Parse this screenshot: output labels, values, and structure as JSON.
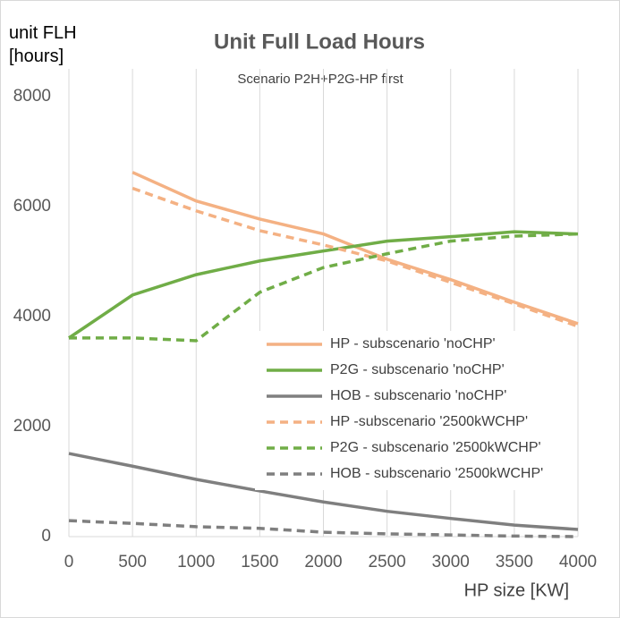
{
  "chart_data": {
    "type": "line",
    "title": "Unit Full Load Hours",
    "subtitle": "Scenario P2H+P2G-HP first",
    "y_label": "unit FLH [hours]",
    "x_label": "HP size [KW]",
    "x": [
      0,
      500,
      1000,
      1500,
      2000,
      2500,
      3000,
      3500,
      4000
    ],
    "xlim": [
      0,
      4000
    ],
    "xticks": [
      0,
      500,
      1000,
      1500,
      2000,
      2500,
      3000,
      3500,
      4000
    ],
    "ylim": [
      0,
      8500
    ],
    "yticks": [
      0,
      2000,
      4000,
      6000,
      8000
    ],
    "grid": "x",
    "legend": "lower right",
    "series": [
      {
        "name": "HP - subscenario 'noCHP'",
        "color": "#f4b183",
        "line_style": "solid",
        "values": [
          null,
          6620,
          6100,
          5770,
          5500,
          5040,
          4670,
          4260,
          3870
        ]
      },
      {
        "name": "P2G - subscenario 'noCHP'",
        "color": "#70ad47",
        "line_style": "solid",
        "values": [
          3610,
          4390,
          4760,
          5010,
          5190,
          5370,
          5450,
          5540,
          5500
        ]
      },
      {
        "name": "HOB - subscenario 'noCHP'",
        "color": "#7f7f7f",
        "line_style": "solid",
        "values": [
          1510,
          1280,
          1040,
          830,
          630,
          460,
          330,
          210,
          130
        ]
      },
      {
        "name": "HP -subscenario '2500kWCHP'",
        "color": "#f4b183",
        "line_style": "dashed",
        "values": [
          null,
          6330,
          5920,
          5560,
          5300,
          5010,
          4620,
          4230,
          3820
        ]
      },
      {
        "name": "P2G - subscenario '2500kWCHP'",
        "color": "#70ad47",
        "line_style": "dashed",
        "values": [
          3610,
          3610,
          3560,
          4440,
          4890,
          5140,
          5370,
          5460,
          5500
        ]
      },
      {
        "name": "HOB - subscenario '2500kWCHP'",
        "color": "#7f7f7f",
        "line_style": "dashed",
        "values": [
          290,
          240,
          180,
          150,
          80,
          50,
          30,
          10,
          0
        ]
      }
    ]
  }
}
